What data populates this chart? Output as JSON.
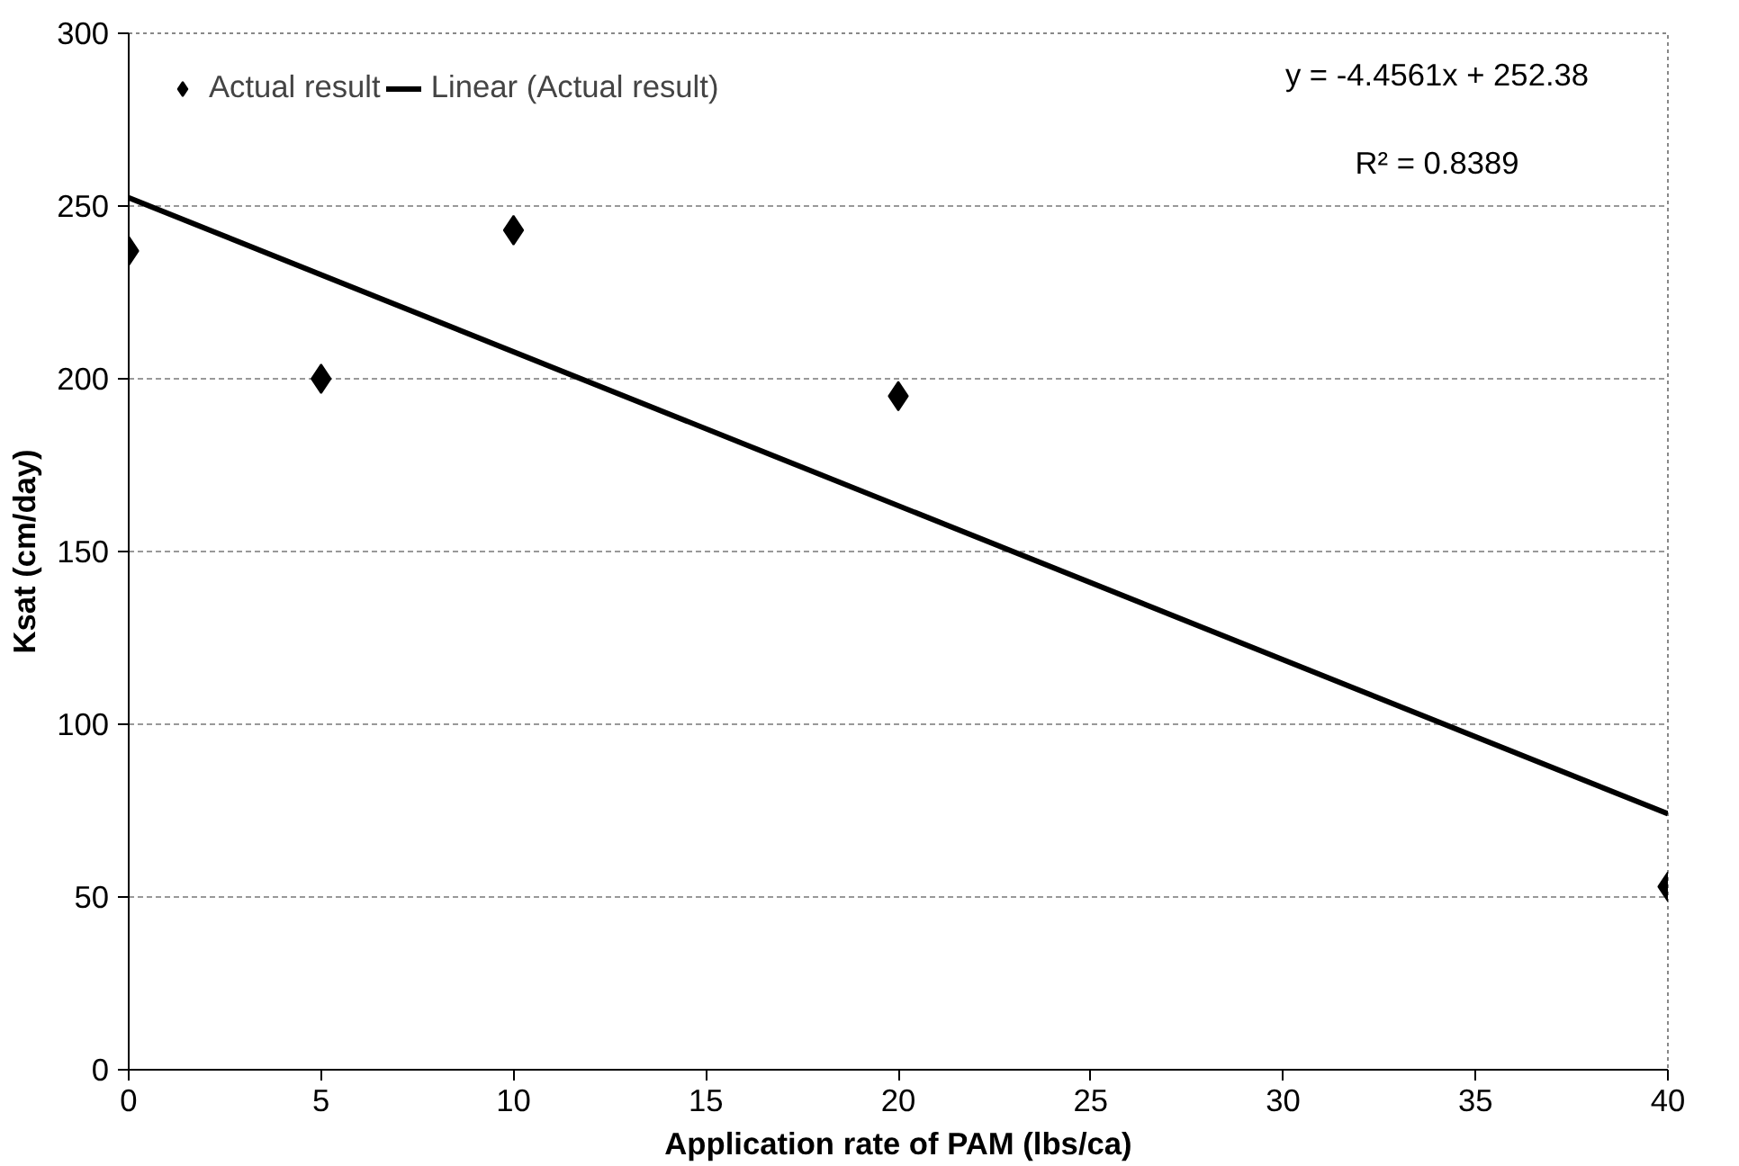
{
  "chart_data": {
    "type": "scatter",
    "xlabel": "Application rate of PAM (lbs/ca)",
    "ylabel": "Ksat (cm/day)",
    "series": [
      {
        "name": "Actual result",
        "color": "#000000",
        "x": [
          0,
          5,
          10,
          20,
          40
        ],
        "values": [
          237,
          200,
          243,
          195,
          53
        ],
        "marker": "diamond"
      },
      {
        "name": "Linear (Actual result)",
        "type": "line",
        "color": "#000000",
        "x": [
          0,
          40
        ],
        "values": [
          252.4,
          74.1
        ],
        "line_style": "solid"
      }
    ],
    "annotations": [
      "y = -4.4561x + 252.38",
      "R² = 0.8389"
    ],
    "xlim": [
      0,
      40
    ],
    "xticks": [
      0,
      5,
      10,
      15,
      20,
      25,
      30,
      35,
      40
    ],
    "ylim": [
      0,
      300
    ],
    "yticks": [
      0,
      50,
      100,
      150,
      200,
      250,
      300
    ],
    "grid": "y",
    "legend": "top left"
  }
}
